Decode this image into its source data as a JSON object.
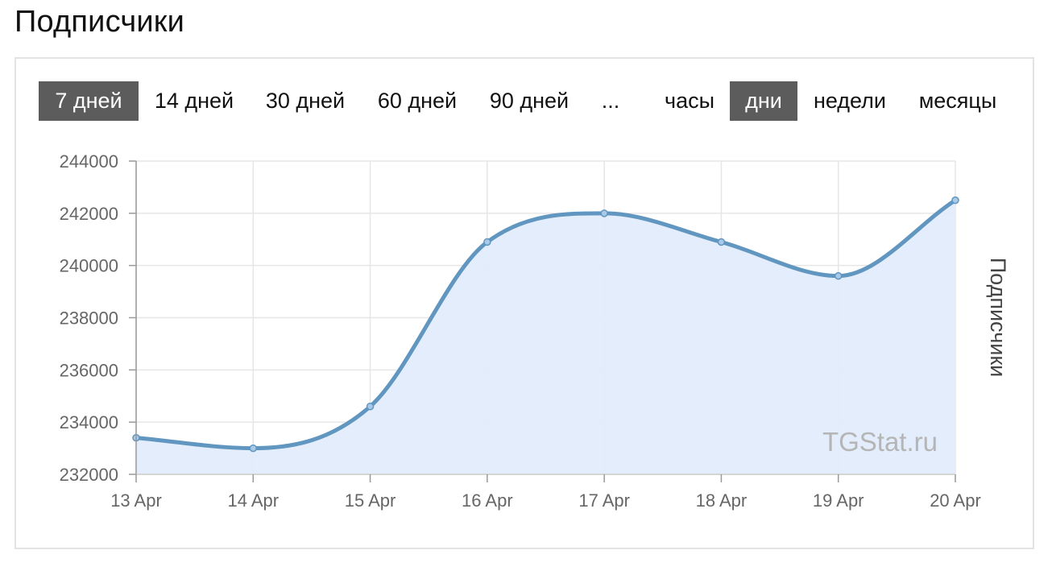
{
  "page": {
    "title": "Подписчики"
  },
  "range_buttons": [
    {
      "label": "7 дней",
      "active": true
    },
    {
      "label": "14 дней",
      "active": false
    },
    {
      "label": "30 дней",
      "active": false
    },
    {
      "label": "60 дней",
      "active": false
    },
    {
      "label": "90 дней",
      "active": false
    },
    {
      "label": "...",
      "active": false
    }
  ],
  "granularity_buttons": [
    {
      "label": "часы",
      "active": false
    },
    {
      "label": "дни",
      "active": true
    },
    {
      "label": "недели",
      "active": false
    },
    {
      "label": "месяцы",
      "active": false
    }
  ],
  "watermark": "TGStat.ru",
  "colors": {
    "line": "#6096bf",
    "fill": "#e2ecfb",
    "active_button": "#5c5c5c",
    "grid": "#e6e6e6"
  },
  "chart_data": {
    "type": "area",
    "title": "",
    "xlabel": "",
    "ylabel": "Подписчики",
    "categories": [
      "13 Apr",
      "14 Apr",
      "15 Apr",
      "16 Apr",
      "17 Apr",
      "18 Apr",
      "19 Apr",
      "20 Apr"
    ],
    "series": [
      {
        "values": [
          233400,
          233000,
          234600,
          240900,
          242000,
          240900,
          239600,
          242500
        ]
      }
    ],
    "ylim": [
      232000,
      244000
    ],
    "yticks": [
      "244000",
      "242000",
      "240000",
      "238000",
      "236000",
      "234000",
      "232000"
    ],
    "grid": true,
    "smooth": true
  }
}
